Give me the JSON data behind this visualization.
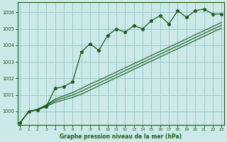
{
  "xlabel": "Graphe pression niveau de la mer (hPa)",
  "ylim": [
    999.2,
    1006.6
  ],
  "xlim": [
    -0.3,
    23.3
  ],
  "yticks": [
    1000,
    1001,
    1002,
    1003,
    1004,
    1005,
    1006
  ],
  "xticks": [
    0,
    1,
    2,
    3,
    4,
    5,
    6,
    7,
    8,
    9,
    10,
    11,
    12,
    13,
    14,
    15,
    16,
    17,
    18,
    19,
    20,
    21,
    22,
    23
  ],
  "bg_color": "#cce8e8",
  "grid_color": "#99cccc",
  "line_color": "#1a5c1a",
  "main_values": [
    999.3,
    1000.0,
    1000.1,
    1000.3,
    1001.4,
    1001.5,
    1001.8,
    1003.6,
    1004.1,
    1003.7,
    1004.6,
    1005.0,
    1004.8,
    1005.2,
    1005.0,
    1005.5,
    1005.8,
    1005.3,
    1006.1,
    1005.7,
    1006.1,
    1006.2,
    1005.9,
    1005.9
  ],
  "lower1_values": [
    999.3,
    1000.0,
    1000.1,
    1000.3,
    1000.55,
    1000.7,
    1000.85,
    1001.05,
    1001.3,
    1001.55,
    1001.8,
    1002.05,
    1002.3,
    1002.55,
    1002.8,
    1003.05,
    1003.3,
    1003.55,
    1003.8,
    1004.05,
    1004.3,
    1004.55,
    1004.8,
    1005.05
  ],
  "mid_values": [
    999.3,
    1000.0,
    1000.12,
    1000.35,
    1000.65,
    1000.82,
    1001.0,
    1001.22,
    1001.48,
    1001.72,
    1001.97,
    1002.22,
    1002.47,
    1002.72,
    1002.97,
    1003.22,
    1003.47,
    1003.72,
    1003.97,
    1004.22,
    1004.47,
    1004.72,
    1004.97,
    1005.22
  ],
  "upper1_values": [
    999.3,
    1000.0,
    1000.14,
    1000.4,
    1000.75,
    1000.94,
    1001.15,
    1001.39,
    1001.66,
    1001.89,
    1002.14,
    1002.39,
    1002.64,
    1002.89,
    1003.14,
    1003.39,
    1003.64,
    1003.89,
    1004.14,
    1004.39,
    1004.64,
    1004.89,
    1005.14,
    1005.39
  ]
}
